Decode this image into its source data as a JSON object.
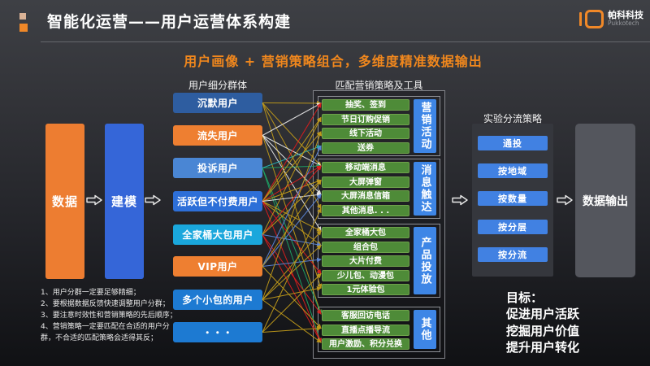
{
  "header": {
    "title": "智能化运营——用户运营体系构建",
    "logo": {
      "name_cn": "帕科科技",
      "name_en": "Pukkotech"
    }
  },
  "subtitle": "用户画像 + 营销策略组合，多维度精准数据输出",
  "flow": {
    "data_box": "数据",
    "model_box": "建模"
  },
  "segments": {
    "header": "用户细分群体",
    "items": [
      {
        "label": "沉默用户",
        "color": "#2e5da0"
      },
      {
        "label": "流失用户",
        "color": "#ee7f31"
      },
      {
        "label": "投诉用户",
        "color": "#4a86d4"
      },
      {
        "label": "活跃但不付费用户",
        "color": "#2d6fd8"
      },
      {
        "label": "全家桶大包用户",
        "color": "#1aa7dc"
      },
      {
        "label": "VIP用户",
        "color": "#ee7f31"
      },
      {
        "label": "多个小包的用户",
        "color": "#1d7ad2"
      },
      {
        "label": "・・・",
        "color": "#1d7ad2"
      }
    ]
  },
  "strategies": {
    "header": "匹配营销策略及工具",
    "groups": [
      {
        "label": "营销活动",
        "items": [
          "抽奖、签到",
          "节日订购促销",
          "线下活动",
          "送券"
        ]
      },
      {
        "label": "消息触达",
        "items": [
          "移动端消息",
          "大屏弹窗",
          "大屏消息信箱",
          "其他消息. . ."
        ]
      },
      {
        "label": "产品投放",
        "items": [
          "全家桶大包",
          "组合包",
          "大片付费",
          "少儿包、动漫包",
          "1元体验包"
        ]
      },
      {
        "label": "其他",
        "items": [
          "客服回访电话",
          "直播点播导流",
          "用户激励、积分兑换"
        ]
      }
    ]
  },
  "split": {
    "header": "实验分流策略",
    "items": [
      "通投",
      "按地域",
      "按数量",
      "按分层",
      "按分流"
    ]
  },
  "output_box": "数据输出",
  "notes": [
    "1、用户分群一定要足够精细；",
    "2、要根据数据反馈快速调整用户分群；",
    "3、要注意时效性和营销策略的先后顺序；",
    "4、营销策略一定要匹配在合适的用户分群，不合适的匹配策略会适得其反；"
  ],
  "goal": {
    "title": "目标：",
    "items": [
      "促进用户活跃",
      "挖掘用户价值",
      "提升用户转化"
    ]
  },
  "colors": {
    "accent_orange": "#ed7d31",
    "accent_blue": "#3566d8",
    "green_item": "#4e8b38",
    "label_blue": "#3e86e6",
    "split_blue": "#4181e2",
    "output_gray": "#54565d",
    "lines": {
      "gold": "#c09a1a",
      "red": "#dd1d1d",
      "white": "#e8e8e8",
      "green": "#1ea565",
      "blue": "#5b86d8",
      "teal": "#28b2b4"
    }
  },
  "connections": [
    {
      "from": 0,
      "to": 0,
      "color": "gold"
    },
    {
      "from": 0,
      "to": 4,
      "color": "gold"
    },
    {
      "from": 0,
      "to": 7,
      "color": "gold"
    },
    {
      "from": 0,
      "to": 12,
      "color": "gold"
    },
    {
      "from": 1,
      "to": 0,
      "color": "white"
    },
    {
      "from": 1,
      "to": 4,
      "color": "white"
    },
    {
      "from": 1,
      "to": 8,
      "color": "white"
    },
    {
      "from": 1,
      "to": 13,
      "color": "gold"
    },
    {
      "from": 1,
      "to": 6,
      "color": "white"
    },
    {
      "from": 2,
      "to": 4,
      "color": "green"
    },
    {
      "from": 2,
      "to": 13,
      "color": "green"
    },
    {
      "from": 2,
      "to": 15,
      "color": "green"
    },
    {
      "from": 2,
      "to": 3,
      "color": "teal"
    },
    {
      "from": 3,
      "to": 0,
      "color": "red"
    },
    {
      "from": 3,
      "to": 1,
      "color": "gold"
    },
    {
      "from": 3,
      "to": 2,
      "color": "gold"
    },
    {
      "from": 3,
      "to": 4,
      "color": "red"
    },
    {
      "from": 3,
      "to": 5,
      "color": "gold"
    },
    {
      "from": 3,
      "to": 8,
      "color": "gold"
    },
    {
      "from": 3,
      "to": 9,
      "color": "gold"
    },
    {
      "from": 3,
      "to": 11,
      "color": "red"
    },
    {
      "from": 3,
      "to": 15,
      "color": "red"
    },
    {
      "from": 3,
      "to": 6,
      "color": "white"
    },
    {
      "from": 4,
      "to": 4,
      "color": "red"
    },
    {
      "from": 4,
      "to": 5,
      "color": "gold"
    },
    {
      "from": 4,
      "to": 9,
      "color": "blue"
    },
    {
      "from": 4,
      "to": 15,
      "color": "red"
    },
    {
      "from": 4,
      "to": 1,
      "color": "gold"
    },
    {
      "from": 4,
      "to": 13,
      "color": "red"
    },
    {
      "from": 5,
      "to": 3,
      "color": "blue"
    },
    {
      "from": 5,
      "to": 6,
      "color": "blue"
    },
    {
      "from": 5,
      "to": 10,
      "color": "blue"
    },
    {
      "from": 5,
      "to": 5,
      "color": "gold"
    },
    {
      "from": 5,
      "to": 14,
      "color": "gold"
    },
    {
      "from": 6,
      "to": 8,
      "color": "gold"
    },
    {
      "from": 6,
      "to": 9,
      "color": "gold"
    },
    {
      "from": 6,
      "to": 2,
      "color": "gold"
    },
    {
      "from": 6,
      "to": 12,
      "color": "gold"
    },
    {
      "from": 6,
      "to": 15,
      "color": "gold"
    },
    {
      "from": 7,
      "to": 7,
      "color": "gold"
    },
    {
      "from": 7,
      "to": 11,
      "color": "gold"
    },
    {
      "from": 7,
      "to": 14,
      "color": "gold"
    }
  ]
}
